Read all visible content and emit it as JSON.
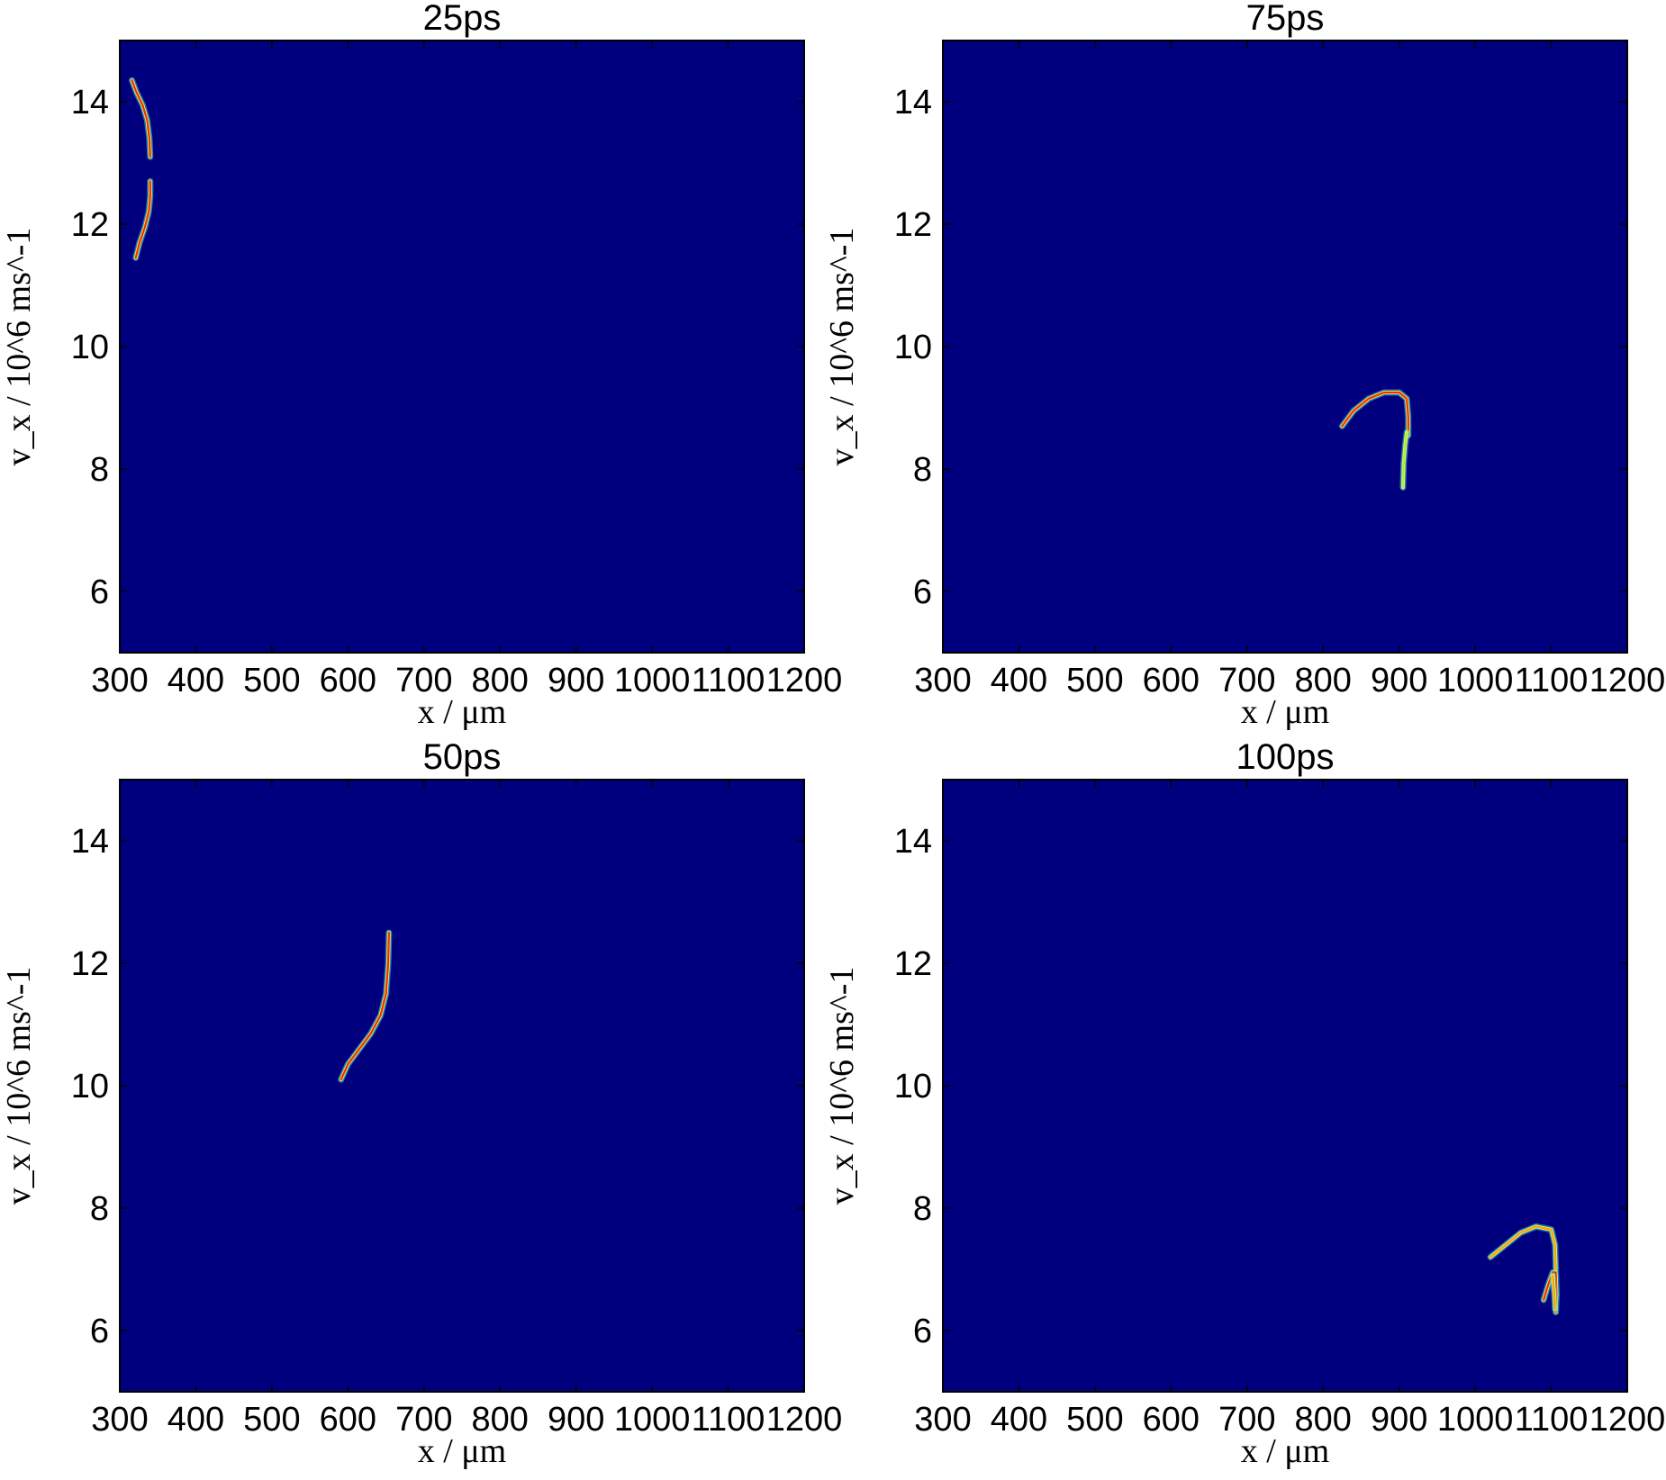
{
  "figure": {
    "background": "#ffffff",
    "plot_background": "#00007f"
  },
  "chart_data": [
    {
      "type": "heatmap",
      "title": "25ps",
      "xlabel": "x / μm",
      "ylabel": "v_x / 10^6 ms^-1",
      "xlim": [
        300,
        1200
      ],
      "ylim": [
        5,
        15
      ],
      "xticks": [
        300,
        400,
        500,
        600,
        700,
        800,
        900,
        1000,
        1100,
        1200
      ],
      "xtick_labels": [
        "300",
        "400",
        "500",
        "600",
        "700",
        "800",
        "900",
        "1000",
        "1100",
        "1200"
      ],
      "yticks": [
        6,
        8,
        10,
        12,
        14
      ],
      "ytick_labels": [
        "6",
        "8",
        "10",
        "12",
        "14"
      ],
      "colormap": "jet",
      "features": [
        {
          "x": [
            316,
            322,
            330,
            336,
            339,
            340
          ],
          "y": [
            14.35,
            14.15,
            13.95,
            13.7,
            13.4,
            13.1
          ],
          "color": "#e83010"
        },
        {
          "x": [
            321,
            326,
            333,
            338,
            340,
            340
          ],
          "y": [
            11.45,
            11.7,
            11.95,
            12.2,
            12.45,
            12.7
          ],
          "color": "#e83010"
        }
      ]
    },
    {
      "type": "heatmap",
      "title": "75ps",
      "xlabel": "x / μm",
      "ylabel": "v_x / 10^6 ms^-1",
      "xlim": [
        300,
        1200
      ],
      "ylim": [
        5,
        15
      ],
      "xticks": [
        300,
        400,
        500,
        600,
        700,
        800,
        900,
        1000,
        1100,
        1200
      ],
      "xtick_labels": [
        "300",
        "400",
        "500",
        "600",
        "700",
        "800",
        "900",
        "1000",
        "1100",
        "1200"
      ],
      "yticks": [
        6,
        8,
        10,
        12,
        14
      ],
      "ytick_labels": [
        "6",
        "8",
        "10",
        "12",
        "14"
      ],
      "colormap": "jet",
      "features": [
        {
          "x": [
            825,
            840,
            860,
            880,
            900,
            910,
            912,
            912
          ],
          "y": [
            8.7,
            8.95,
            9.15,
            9.25,
            9.25,
            9.15,
            8.85,
            8.55
          ],
          "color": "#e83010"
        },
        {
          "x": [
            905,
            906,
            908,
            910
          ],
          "y": [
            7.7,
            8.1,
            8.4,
            8.6
          ],
          "color": "#a8f048"
        }
      ]
    },
    {
      "type": "heatmap",
      "title": "50ps",
      "xlabel": "x / μm",
      "ylabel": "v_x / 10^6 ms^-1",
      "xlim": [
        300,
        1200
      ],
      "ylim": [
        5,
        15
      ],
      "xticks": [
        300,
        400,
        500,
        600,
        700,
        800,
        900,
        1000,
        1100,
        1200
      ],
      "xtick_labels": [
        "300",
        "400",
        "500",
        "600",
        "700",
        "800",
        "900",
        "1000",
        "1100",
        "1200"
      ],
      "yticks": [
        6,
        8,
        10,
        12,
        14
      ],
      "ytick_labels": [
        "6",
        "8",
        "10",
        "12",
        "14"
      ],
      "colormap": "jet",
      "features": [
        {
          "x": [
            591,
            600,
            615,
            630,
            643,
            650,
            653,
            654
          ],
          "y": [
            10.1,
            10.35,
            10.6,
            10.85,
            11.15,
            11.5,
            12.0,
            12.5
          ],
          "color": "#e83010"
        }
      ]
    },
    {
      "type": "heatmap",
      "title": "100ps",
      "xlabel": "x / μm",
      "ylabel": "v_x / 10^6 ms^-1",
      "xlim": [
        300,
        1200
      ],
      "ylim": [
        5,
        15
      ],
      "xticks": [
        300,
        400,
        500,
        600,
        700,
        800,
        900,
        1000,
        1100,
        1200
      ],
      "xtick_labels": [
        "300",
        "400",
        "500",
        "600",
        "700",
        "800",
        "900",
        "1000",
        "1100",
        "1200"
      ],
      "yticks": [
        6,
        8,
        10,
        12,
        14
      ],
      "ytick_labels": [
        "6",
        "8",
        "10",
        "12",
        "14"
      ],
      "colormap": "jet",
      "features": [
        {
          "x": [
            1020,
            1040,
            1060,
            1080,
            1100,
            1105,
            1106
          ],
          "y": [
            7.2,
            7.4,
            7.6,
            7.7,
            7.65,
            7.4,
            7.0
          ],
          "color": "#f0a020"
        },
        {
          "x": [
            1090,
            1096,
            1102,
            1106,
            1107,
            1106
          ],
          "y": [
            6.5,
            6.75,
            6.95,
            6.95,
            6.6,
            6.3
          ],
          "color": "#e83010"
        },
        {
          "x": [
            1102,
            1104,
            1105
          ],
          "y": [
            6.9,
            6.6,
            6.35
          ],
          "color": "#f0a020"
        }
      ]
    }
  ]
}
